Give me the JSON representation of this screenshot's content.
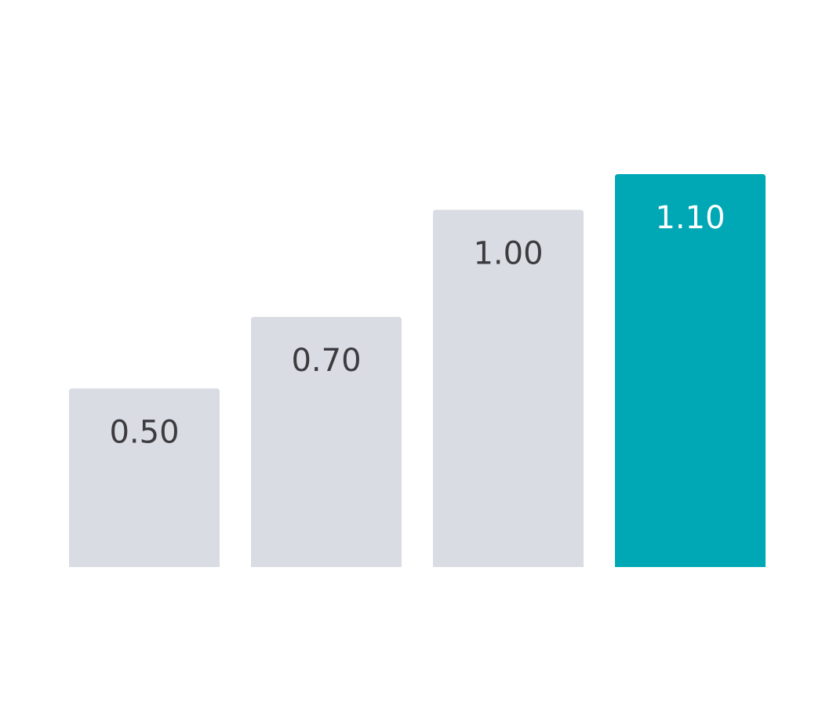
{
  "chart_data": {
    "type": "bar",
    "categories": [
      null,
      null,
      null,
      null
    ],
    "values": [
      0.5,
      0.7,
      1.0,
      1.1
    ],
    "value_labels": [
      "0.50",
      "0.70",
      "1.00",
      "1.10"
    ],
    "colors": [
      "#dadce3",
      "#dadce3",
      "#dadce3",
      "#00a8b5"
    ]
  }
}
